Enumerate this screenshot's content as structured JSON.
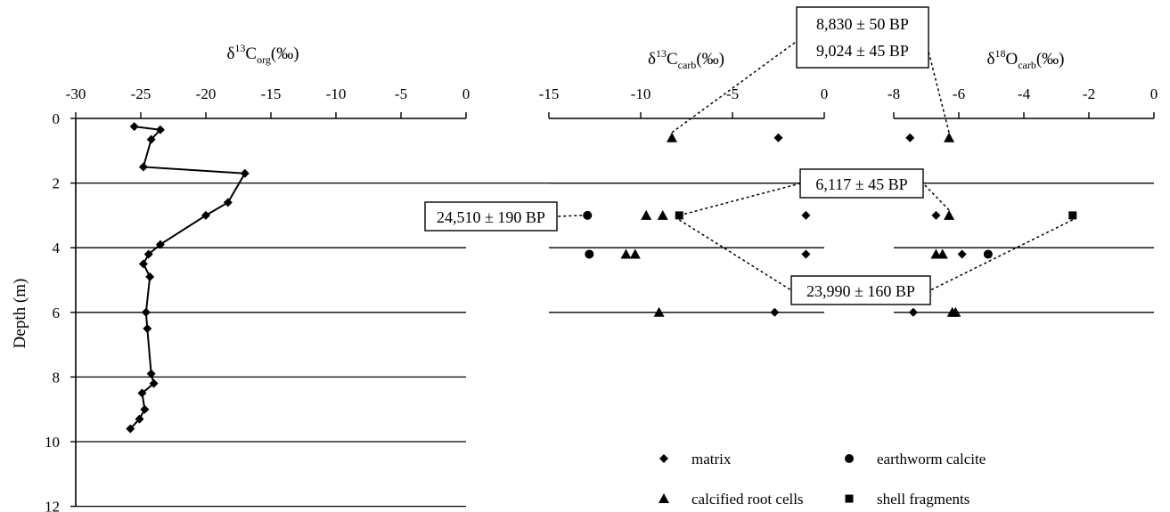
{
  "chart_data": [
    {
      "type": "line",
      "title": "",
      "xlabel": {
        "base": "δ",
        "sup": "13",
        "main": "C",
        "sub": "org",
        "unit": "(‰)"
      },
      "ylabel": "Depth (m)",
      "xlim": [
        -30,
        0
      ],
      "ylim": [
        0,
        12
      ],
      "xticks": [
        "-30",
        "-25",
        "-20",
        "-15",
        "-10",
        "-5",
        "0"
      ],
      "yticks": [
        "0",
        "2",
        "4",
        "6",
        "8",
        "10",
        "12"
      ],
      "grid_y": true,
      "series": [
        {
          "marker": "diamond",
          "points": [
            [
              -25.5,
              0.25
            ],
            [
              -23.5,
              0.35
            ],
            [
              -24.2,
              0.65
            ],
            [
              -24.8,
              1.5
            ],
            [
              -17.0,
              1.7
            ],
            [
              -18.3,
              2.6
            ],
            [
              -20.0,
              3.0
            ],
            [
              -23.5,
              3.9
            ],
            [
              -24.4,
              4.2
            ],
            [
              -24.8,
              4.5
            ],
            [
              -24.3,
              4.9
            ],
            [
              -24.6,
              6.0
            ],
            [
              -24.5,
              6.5
            ],
            [
              -24.2,
              7.9
            ],
            [
              -24.0,
              8.2
            ],
            [
              -24.9,
              8.5
            ],
            [
              -24.7,
              9.0
            ],
            [
              -25.1,
              9.3
            ],
            [
              -25.8,
              9.6
            ]
          ]
        }
      ]
    },
    {
      "type": "scatter",
      "title": "",
      "xlabel": {
        "base": "δ",
        "sup": "13",
        "main": "C",
        "sub": "carb",
        "unit": "(‰)"
      },
      "xlim": [
        -15,
        0
      ],
      "xticks": [
        "-15",
        "-10",
        "-5",
        "0"
      ],
      "series": [
        {
          "name": "matrix",
          "marker": "diamond",
          "points": [
            [
              -2.5,
              0.6
            ],
            [
              -1.0,
              3.0
            ],
            [
              -1.0,
              4.2
            ],
            [
              -2.7,
              6.0
            ]
          ]
        },
        {
          "name": "calcified root cells",
          "marker": "triangle",
          "points": [
            [
              -8.3,
              0.6
            ],
            [
              -9.7,
              3.0
            ],
            [
              -8.8,
              3.0
            ],
            [
              -10.8,
              4.2
            ],
            [
              -10.3,
              4.2
            ],
            [
              -9.0,
              6.0
            ]
          ]
        },
        {
          "name": "earthworm calcite",
          "marker": "circle",
          "points": [
            [
              -12.9,
              3.0
            ],
            [
              -12.8,
              4.2
            ]
          ]
        },
        {
          "name": "shell fragments",
          "marker": "square",
          "points": [
            [
              -7.9,
              3.0
            ]
          ]
        }
      ]
    },
    {
      "type": "scatter",
      "title": "",
      "xlabel": {
        "base": "δ",
        "sup": "18",
        "main": "O",
        "sub": "carb",
        "unit": "(‰)"
      },
      "xlim": [
        -8,
        0
      ],
      "xticks": [
        "-8",
        "-6",
        "-4",
        "-2",
        "0"
      ],
      "series": [
        {
          "name": "matrix",
          "marker": "diamond",
          "points": [
            [
              -7.5,
              0.6
            ],
            [
              -6.7,
              3.0
            ],
            [
              -5.9,
              4.2
            ],
            [
              -7.4,
              6.0
            ]
          ]
        },
        {
          "name": "calcified root cells",
          "marker": "triangle",
          "points": [
            [
              -6.3,
              0.6
            ],
            [
              -6.3,
              3.0
            ],
            [
              -6.7,
              4.2
            ],
            [
              -6.5,
              4.2
            ],
            [
              -6.2,
              6.0
            ],
            [
              -6.1,
              6.0
            ]
          ]
        },
        {
          "name": "earthworm calcite",
          "marker": "circle",
          "points": [
            [
              -5.1,
              4.2
            ]
          ]
        },
        {
          "name": "shell fragments",
          "marker": "square",
          "points": [
            [
              -2.5,
              3.0
            ]
          ]
        }
      ]
    }
  ],
  "annotations": {
    "date_a": "8,830 ± 50 BP",
    "date_b": "9,024 ± 45 BP",
    "date_c": "6,117 ± 45 BP",
    "date_d": "24,510 ± 190 BP",
    "date_e": "23,990 ± 160 BP"
  },
  "legend": {
    "position": "bottom-right",
    "items": [
      {
        "label": "matrix",
        "marker": "diamond"
      },
      {
        "label": "earthworm calcite",
        "marker": "circle"
      },
      {
        "label": "calcified root cells",
        "marker": "triangle"
      },
      {
        "label": "shell fragments",
        "marker": "square"
      }
    ]
  }
}
